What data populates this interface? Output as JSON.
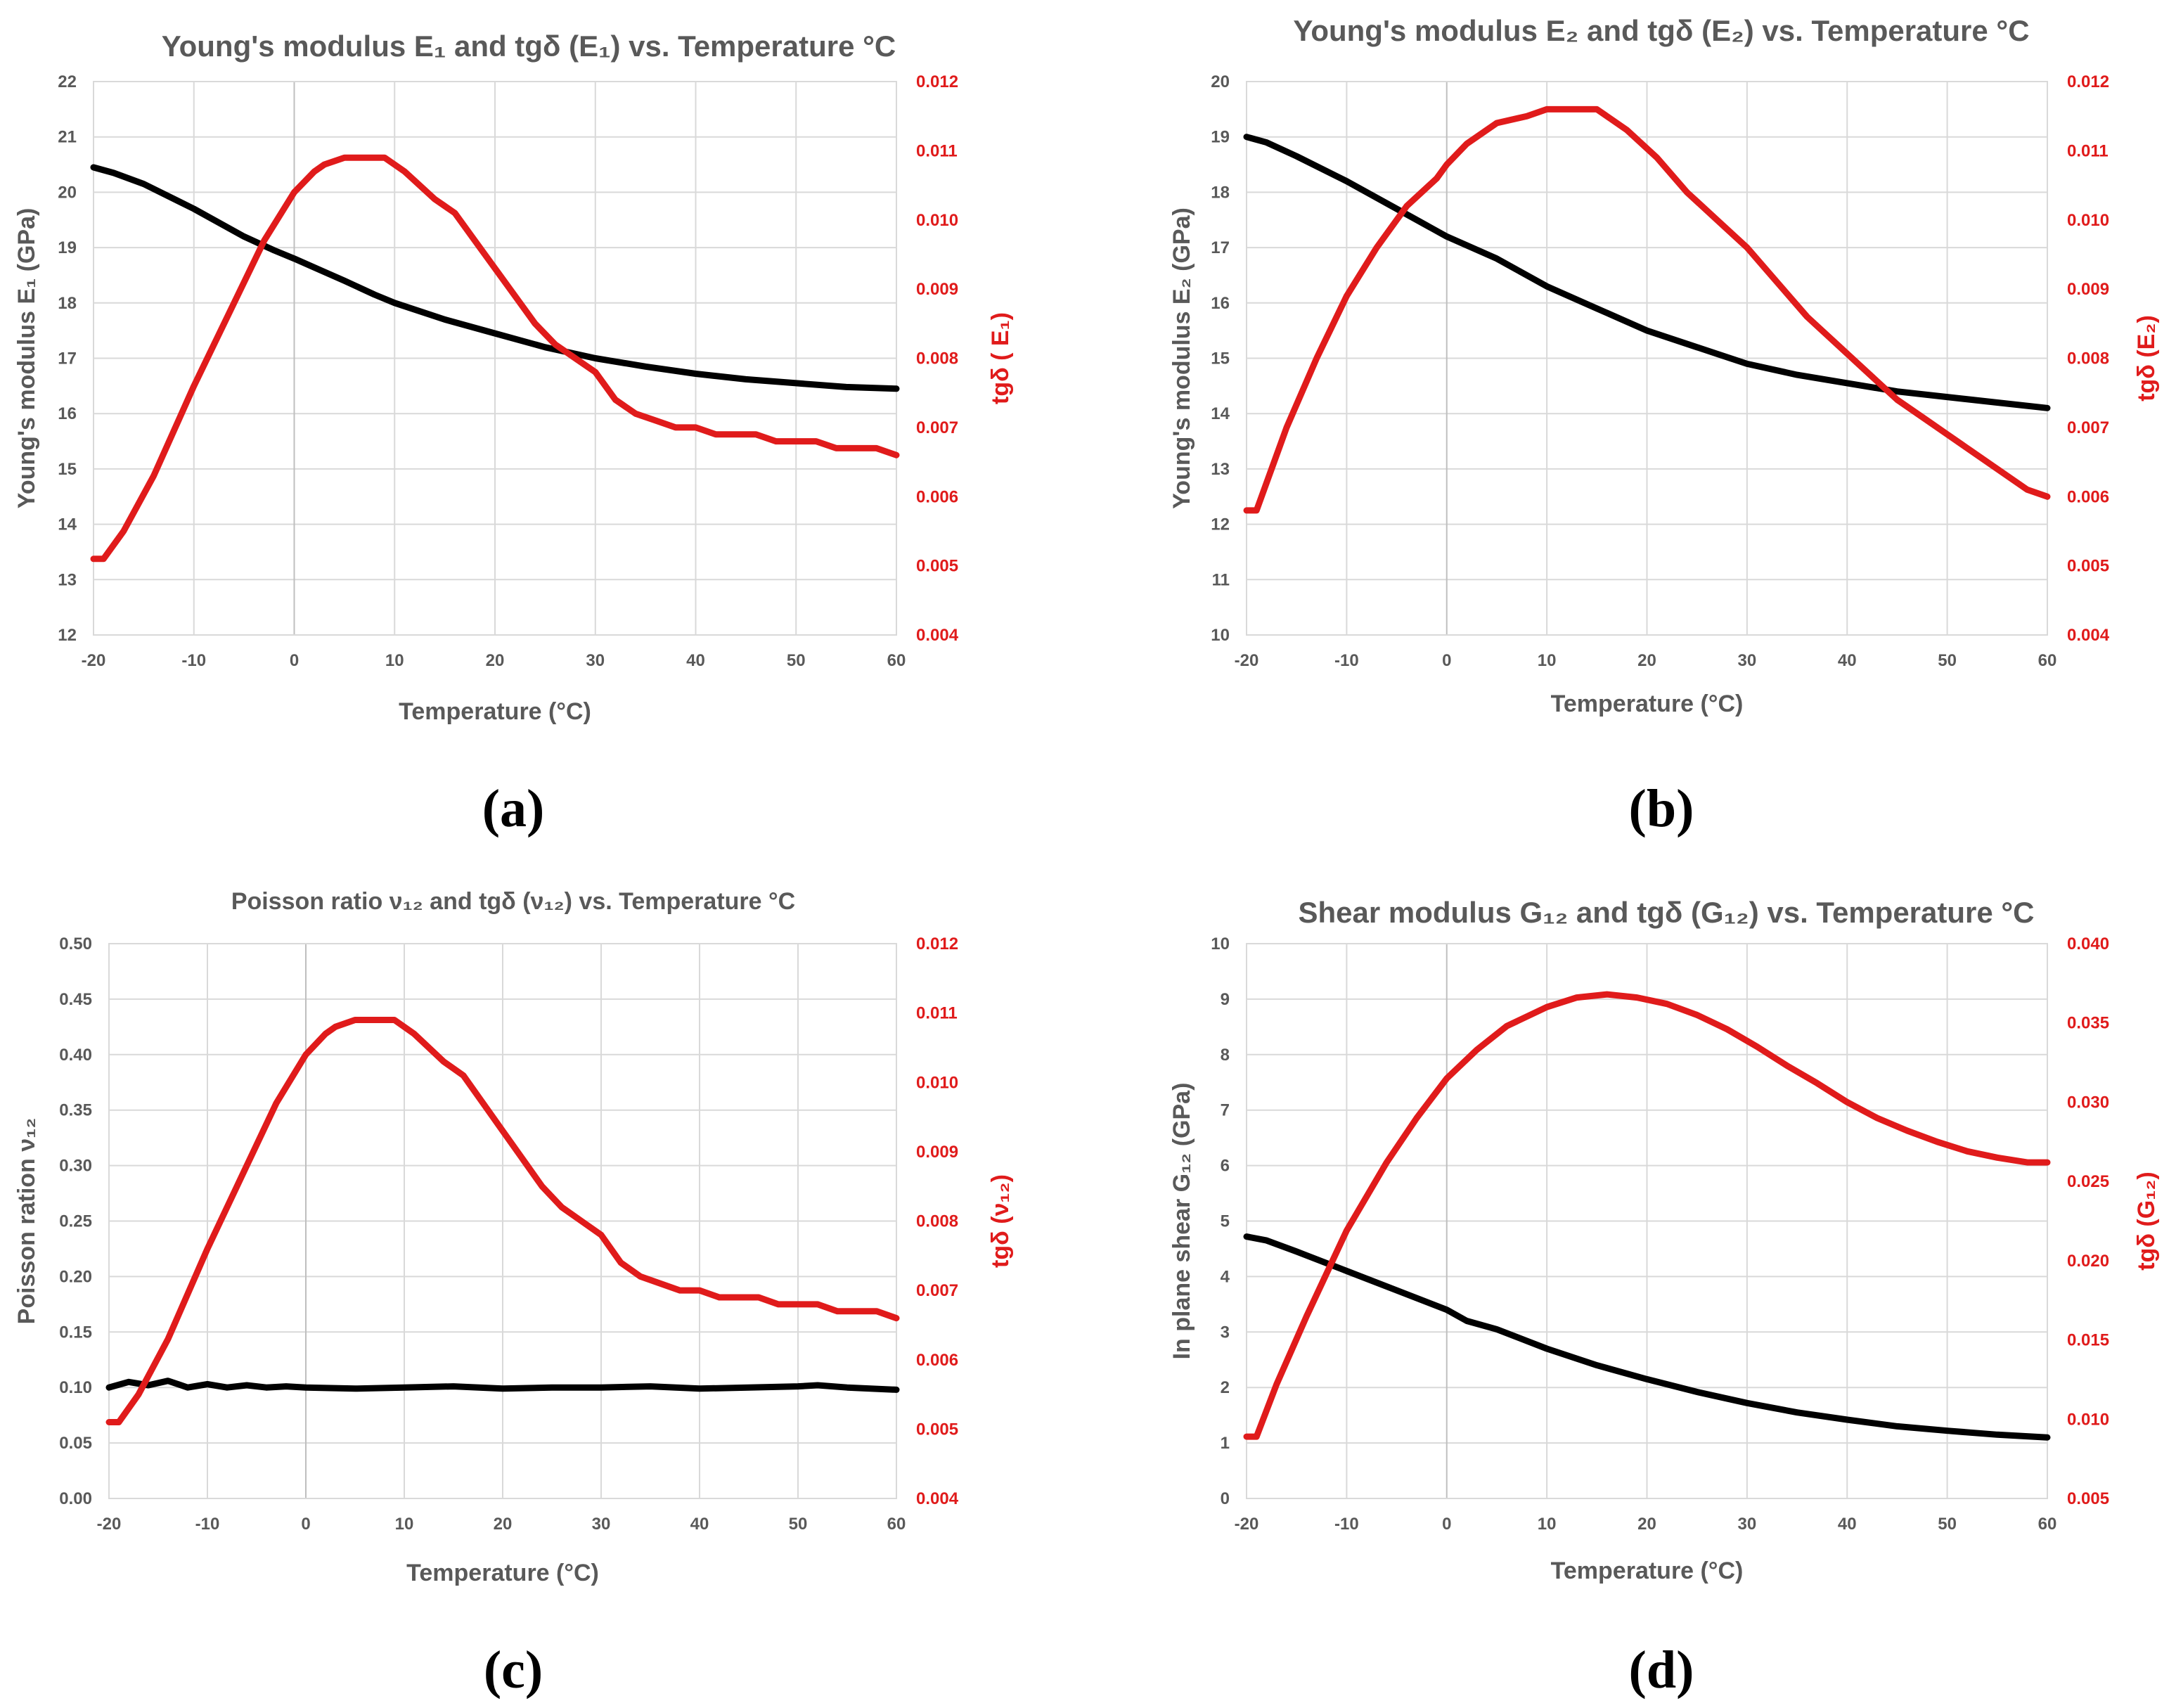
{
  "chart_data": [
    {
      "type": "line",
      "panel_label": "(a)",
      "title": "Young's modulus E₁ and tgδ (E₁) vs. Temperature °C",
      "xlabel": "Temperature (°C)",
      "ylabel": "Young's modulus E₁ (GPa)",
      "y2label": "tgδ ( E₁)",
      "xlim": [
        -20,
        60
      ],
      "ylim": [
        12,
        22
      ],
      "y2lim": [
        0.004,
        0.012
      ],
      "xticks": [
        "-20",
        "-10",
        "0",
        "10",
        "20",
        "30",
        "40",
        "50",
        "60"
      ],
      "yticks": [
        "12",
        "13",
        "14",
        "15",
        "16",
        "17",
        "18",
        "19",
        "20",
        "21",
        "22"
      ],
      "y2ticks": [
        "0.004",
        "0.005",
        "0.006",
        "0.007",
        "0.008",
        "0.009",
        "0.010",
        "0.011",
        "0.012"
      ],
      "series": [
        {
          "name": "Young's modulus E1",
          "axis": "left",
          "color": "#000000",
          "x": [
            -20,
            -18,
            -15,
            -10,
            -5,
            -2,
            0,
            5,
            8,
            10,
            15,
            20,
            25,
            30,
            35,
            40,
            45,
            50,
            55,
            60
          ],
          "y": [
            20.45,
            20.35,
            20.15,
            19.7,
            19.2,
            18.95,
            18.8,
            18.4,
            18.15,
            18.0,
            17.7,
            17.45,
            17.2,
            17.0,
            16.85,
            16.72,
            16.62,
            16.55,
            16.48,
            16.45
          ]
        },
        {
          "name": "tgδ (E1)",
          "axis": "right",
          "color": "#e01b1b",
          "x": [
            -20,
            -19,
            -17,
            -14,
            -10,
            -6,
            -3,
            0,
            2,
            3,
            5,
            7,
            9,
            11,
            14,
            16,
            18,
            20,
            22,
            24,
            26,
            28,
            30,
            32,
            34,
            36,
            38,
            40,
            42,
            44,
            46,
            48,
            50,
            52,
            54,
            56,
            58,
            60
          ],
          "y": [
            0.0051,
            0.0051,
            0.0055,
            0.0063,
            0.0076,
            0.0088,
            0.0097,
            0.0104,
            0.0107,
            0.0108,
            0.0109,
            0.0109,
            0.0109,
            0.0107,
            0.0103,
            0.0101,
            0.0097,
            0.0093,
            0.0089,
            0.0085,
            0.0082,
            0.008,
            0.0078,
            0.0074,
            0.0072,
            0.0071,
            0.007,
            0.007,
            0.0069,
            0.0069,
            0.0069,
            0.0068,
            0.0068,
            0.0068,
            0.0067,
            0.0067,
            0.0067,
            0.0066
          ]
        }
      ]
    },
    {
      "type": "line",
      "panel_label": "(b)",
      "title": "Young's modulus E₂ and tgδ (E₂) vs. Temperature °C",
      "xlabel": "Temperature (°C)",
      "ylabel": "Young's modulus E₂ (GPa)",
      "y2label": "tgδ (E₂)",
      "xlim": [
        -20,
        60
      ],
      "ylim": [
        10,
        20
      ],
      "y2lim": [
        0.004,
        0.012
      ],
      "xticks": [
        "-20",
        "-10",
        "0",
        "10",
        "20",
        "30",
        "40",
        "50",
        "60"
      ],
      "yticks": [
        "10",
        "11",
        "12",
        "13",
        "14",
        "15",
        "16",
        "17",
        "18",
        "19",
        "20"
      ],
      "y2ticks": [
        "0.004",
        "0.005",
        "0.006",
        "0.007",
        "0.008",
        "0.009",
        "0.010",
        "0.011",
        "0.012"
      ],
      "series": [
        {
          "name": "Young's modulus E2",
          "axis": "left",
          "color": "#000000",
          "x": [
            -20,
            -18,
            -15,
            -10,
            -5,
            0,
            5,
            10,
            15,
            20,
            25,
            30,
            35,
            40,
            45,
            50,
            55,
            60
          ],
          "y": [
            19.0,
            18.9,
            18.65,
            18.2,
            17.7,
            17.2,
            16.8,
            16.3,
            15.9,
            15.5,
            15.2,
            14.9,
            14.7,
            14.55,
            14.4,
            14.3,
            14.2,
            14.1
          ]
        },
        {
          "name": "tgδ (E2)",
          "axis": "right",
          "color": "#e01b1b",
          "x": [
            -20,
            -19,
            -16,
            -13,
            -10,
            -7,
            -4,
            -1,
            0,
            2,
            5,
            8,
            10,
            12,
            15,
            18,
            21,
            24,
            27,
            30,
            33,
            36,
            39,
            42,
            45,
            48,
            50,
            52,
            55,
            58,
            60
          ],
          "y": [
            0.0058,
            0.0058,
            0.007,
            0.008,
            0.0089,
            0.0096,
            0.0102,
            0.0106,
            0.0108,
            0.0111,
            0.0114,
            0.0115,
            0.0116,
            0.0116,
            0.0116,
            0.0113,
            0.0109,
            0.0104,
            0.01,
            0.0096,
            0.0091,
            0.0086,
            0.0082,
            0.0078,
            0.0074,
            0.0071,
            0.0069,
            0.0067,
            0.0064,
            0.0061,
            0.006
          ]
        }
      ]
    },
    {
      "type": "line",
      "panel_label": "(c)",
      "title": "Poisson ratio ν₁₂ and tgδ  (ν₁₂)  vs. Temperature °C",
      "xlabel": "Temperature (°C)",
      "ylabel": "Poisson ration ν₁₂",
      "y2label": "tgδ (ν₁₂)",
      "xlim": [
        -20,
        60
      ],
      "ylim": [
        0,
        0.5
      ],
      "y2lim": [
        0.004,
        0.012
      ],
      "xticks": [
        "-20",
        "-10",
        "0",
        "10",
        "20",
        "30",
        "40",
        "50",
        "60"
      ],
      "yticks": [
        "0.00",
        "0.05",
        "0.10",
        "0.15",
        "0.20",
        "0.25",
        "0.30",
        "0.35",
        "0.40",
        "0.45",
        "0.50"
      ],
      "y2ticks": [
        "0.004",
        "0.005",
        "0.006",
        "0.007",
        "0.008",
        "0.009",
        "0.010",
        "0.011",
        "0.012"
      ],
      "series": [
        {
          "name": "Poisson ratio v12",
          "axis": "left",
          "color": "#000000",
          "x": [
            -20,
            -18,
            -16,
            -14,
            -12,
            -10,
            -8,
            -6,
            -4,
            -2,
            0,
            5,
            10,
            15,
            20,
            25,
            30,
            35,
            40,
            45,
            50,
            52,
            55,
            60
          ],
          "y": [
            0.1,
            0.105,
            0.102,
            0.106,
            0.1,
            0.103,
            0.1,
            0.102,
            0.1,
            0.101,
            0.1,
            0.099,
            0.1,
            0.101,
            0.099,
            0.1,
            0.1,
            0.101,
            0.099,
            0.1,
            0.101,
            0.102,
            0.1,
            0.098
          ]
        },
        {
          "name": "tgδ (v12)",
          "axis": "right",
          "color": "#e01b1b",
          "x": [
            -20,
            -19,
            -17,
            -14,
            -10,
            -6,
            -3,
            0,
            2,
            3,
            5,
            7,
            9,
            11,
            14,
            16,
            18,
            20,
            22,
            24,
            26,
            28,
            30,
            32,
            34,
            36,
            38,
            40,
            42,
            44,
            46,
            48,
            50,
            52,
            54,
            56,
            58,
            60
          ],
          "y": [
            0.0051,
            0.0051,
            0.0055,
            0.0063,
            0.0076,
            0.0088,
            0.0097,
            0.0104,
            0.0107,
            0.0108,
            0.0109,
            0.0109,
            0.0109,
            0.0107,
            0.0103,
            0.0101,
            0.0097,
            0.0093,
            0.0089,
            0.0085,
            0.0082,
            0.008,
            0.0078,
            0.0074,
            0.0072,
            0.0071,
            0.007,
            0.007,
            0.0069,
            0.0069,
            0.0069,
            0.0068,
            0.0068,
            0.0068,
            0.0067,
            0.0067,
            0.0067,
            0.0066
          ]
        }
      ]
    },
    {
      "type": "line",
      "panel_label": "(d)",
      "title": "Shear modulus G₁₂ and tgδ (G₁₂) vs. Temperature °C",
      "xlabel": "Temperature (°C)",
      "ylabel": "In plane shear G₁₂ (GPa)",
      "y2label": "tgδ (G₁₂)",
      "xlim": [
        -20,
        60
      ],
      "ylim": [
        0,
        10
      ],
      "y2lim": [
        0.005,
        0.04
      ],
      "xticks": [
        "-20",
        "-10",
        "0",
        "10",
        "20",
        "30",
        "40",
        "50",
        "60"
      ],
      "yticks": [
        "0",
        "1",
        "2",
        "3",
        "4",
        "5",
        "6",
        "7",
        "8",
        "9",
        "10"
      ],
      "y2ticks": [
        "0.005",
        "0.010",
        "0.015",
        "0.020",
        "0.025",
        "0.030",
        "0.035",
        "0.040"
      ],
      "series": [
        {
          "name": "In plane shear G12",
          "axis": "left",
          "color": "#000000",
          "x": [
            -20,
            -18,
            -15,
            -10,
            -5,
            0,
            2,
            5,
            10,
            15,
            20,
            25,
            30,
            35,
            40,
            45,
            50,
            55,
            60
          ],
          "y": [
            4.72,
            4.65,
            4.45,
            4.1,
            3.75,
            3.4,
            3.2,
            3.05,
            2.7,
            2.4,
            2.15,
            1.92,
            1.72,
            1.55,
            1.42,
            1.3,
            1.22,
            1.15,
            1.1
          ]
        },
        {
          "name": "tgδ (G12)",
          "axis": "right",
          "color": "#e01b1b",
          "x": [
            -20,
            -19,
            -17,
            -14,
            -10,
            -6,
            -3,
            0,
            3,
            6,
            10,
            13,
            16,
            19,
            22,
            25,
            28,
            31,
            34,
            37,
            40,
            43,
            46,
            49,
            52,
            55,
            58,
            60
          ],
          "y": [
            0.0089,
            0.0089,
            0.0122,
            0.0165,
            0.0219,
            0.0262,
            0.029,
            0.0315,
            0.0333,
            0.0348,
            0.036,
            0.0366,
            0.0368,
            0.0366,
            0.0362,
            0.0355,
            0.0346,
            0.0335,
            0.0323,
            0.0312,
            0.03,
            0.029,
            0.0282,
            0.0275,
            0.0269,
            0.0265,
            0.0262,
            0.0262
          ]
        }
      ]
    }
  ]
}
